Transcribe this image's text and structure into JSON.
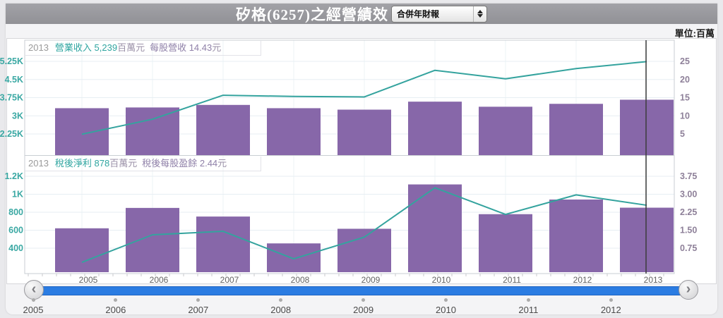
{
  "header": {
    "title": "矽格(6257)之經營績效",
    "report_select": {
      "value": "合併年財報"
    }
  },
  "unit_label": "單位:百萬",
  "colors": {
    "header_bg": "#98989d",
    "bar_fill": "#8767a9",
    "line_stroke": "#34a39e",
    "left_tick_text": "#3aa8a3",
    "right_tick_text": "#8e8099",
    "grid_line": "#e7eef3",
    "plot_border": "#c9ced3",
    "crosshair": "#3c3c3c",
    "slider_blue": "#2b7ce2"
  },
  "slider": {
    "prev_icon": "‹",
    "next_icon": "›"
  },
  "timeline_years": [
    "2005",
    "2006",
    "2007",
    "2008",
    "2009",
    "2010",
    "2011",
    "2012"
  ],
  "crosshair_year": "2013",
  "chart_data": [
    {
      "type": "bar+line",
      "label": {
        "year": "2013",
        "series1": "營業收入 5,239",
        "series1_unit": "百萬元",
        "series2": "每股營收 14.43",
        "series2_unit": "元"
      },
      "categories": [
        "2005",
        "2006",
        "2007",
        "2008",
        "2009",
        "2010",
        "2011",
        "2012",
        "2013"
      ],
      "line_series": {
        "name": "營業收入",
        "axis": "left",
        "unit": "百萬元",
        "values": [
          2240,
          2860,
          3850,
          3800,
          3780,
          4880,
          4530,
          4950,
          5239
        ]
      },
      "bar_series": {
        "name": "每股營收",
        "axis": "right",
        "unit": "元",
        "values": [
          12.1,
          12.3,
          13.0,
          12.1,
          11.7,
          13.9,
          12.5,
          13.3,
          14.43
        ]
      },
      "left_axis": {
        "ticks": [
          {
            "v": 5250,
            "label": "5.25K"
          },
          {
            "v": 4500,
            "label": "4.5K"
          },
          {
            "v": 3750,
            "label": "3.75K"
          },
          {
            "v": 3000,
            "label": "3K"
          },
          {
            "v": 2250,
            "label": "2.25K"
          }
        ]
      },
      "right_axis": {
        "ticks": [
          {
            "v": 25,
            "label": "25"
          },
          {
            "v": 20,
            "label": "20"
          },
          {
            "v": 15,
            "label": "15"
          },
          {
            "v": 10,
            "label": "10"
          },
          {
            "v": 5,
            "label": "5"
          }
        ]
      },
      "grid": true,
      "legend": "none"
    },
    {
      "type": "bar+line",
      "label": {
        "year": "2013",
        "series1": "稅後淨利 878",
        "series1_unit": "百萬元",
        "series2": "稅後每股盈餘 2.44",
        "series2_unit": "元"
      },
      "categories": [
        "2005",
        "2006",
        "2007",
        "2008",
        "2009",
        "2010",
        "2011",
        "2012",
        "2013"
      ],
      "line_series": {
        "name": "稅後淨利",
        "axis": "left",
        "unit": "百萬元",
        "values": [
          243,
          549,
          588,
          282,
          523,
          1072,
          776,
          993,
          878
        ]
      },
      "bar_series": {
        "name": "稅後每股盈餘",
        "axis": "right",
        "unit": "元",
        "values": [
          1.58,
          2.43,
          2.07,
          0.95,
          1.56,
          3.41,
          2.17,
          2.78,
          2.44
        ]
      },
      "left_axis": {
        "ticks": [
          {
            "v": 1200,
            "label": "1.2K"
          },
          {
            "v": 1000,
            "label": "1K"
          },
          {
            "v": 800,
            "label": "800"
          },
          {
            "v": 600,
            "label": "600"
          },
          {
            "v": 400,
            "label": "400"
          }
        ]
      },
      "right_axis": {
        "ticks": [
          {
            "v": 3.75,
            "label": "3.75"
          },
          {
            "v": 3.0,
            "label": "3.00"
          },
          {
            "v": 2.25,
            "label": "2.25"
          },
          {
            "v": 1.5,
            "label": "1.50"
          },
          {
            "v": 0.75,
            "label": "0.75"
          }
        ]
      },
      "grid": true,
      "legend": "none"
    }
  ]
}
